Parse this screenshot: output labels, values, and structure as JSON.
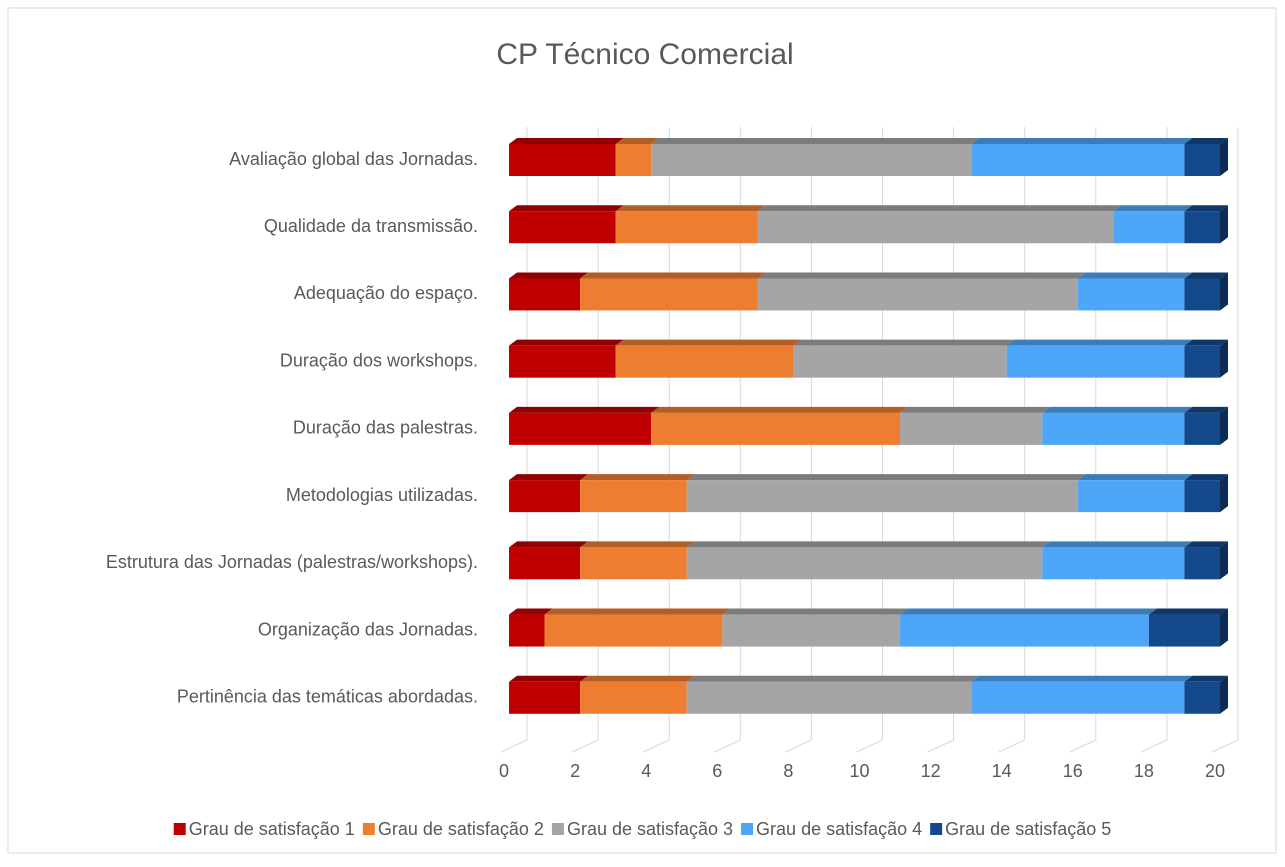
{
  "chart_data": {
    "type": "stacked_barh",
    "title": "CP Técnico Comercial",
    "categories": [
      "Avaliação global das Jornadas.",
      "Qualidade da transmissão.",
      "Adequação do espaço.",
      "Duração dos workshops.",
      "Duração das palestras.",
      "Metodologias utilizadas.",
      "Estrutura das Jornadas (palestras/workshops).",
      "Organização das Jornadas.",
      "Pertinência das temáticas abordadas."
    ],
    "series": [
      {
        "name": "Grau de satisfação 1",
        "color": "#c00000",
        "values": [
          3,
          3,
          2,
          3,
          4,
          2,
          2,
          1,
          2
        ]
      },
      {
        "name": "Grau de satisfação 2",
        "color": "#ed7d31",
        "values": [
          1,
          4,
          5,
          5,
          7,
          3,
          3,
          5,
          3
        ]
      },
      {
        "name": "Grau de satisfação 3",
        "color": "#a5a5a5",
        "values": [
          9,
          10,
          9,
          6,
          4,
          11,
          10,
          5,
          8
        ]
      },
      {
        "name": "Grau de satisfação 4",
        "color": "#4ea6f8",
        "values": [
          6,
          2,
          3,
          5,
          4,
          3,
          4,
          7,
          6
        ]
      },
      {
        "name": "Grau de satisfação 5",
        "color": "#144a8c",
        "values": [
          1,
          1,
          1,
          1,
          1,
          1,
          1,
          2,
          1
        ]
      }
    ],
    "xlim": [
      0,
      20
    ],
    "xticks": [
      0,
      2,
      4,
      6,
      8,
      10,
      12,
      14,
      16,
      18,
      20
    ],
    "grid": true,
    "legend": "bottom"
  }
}
